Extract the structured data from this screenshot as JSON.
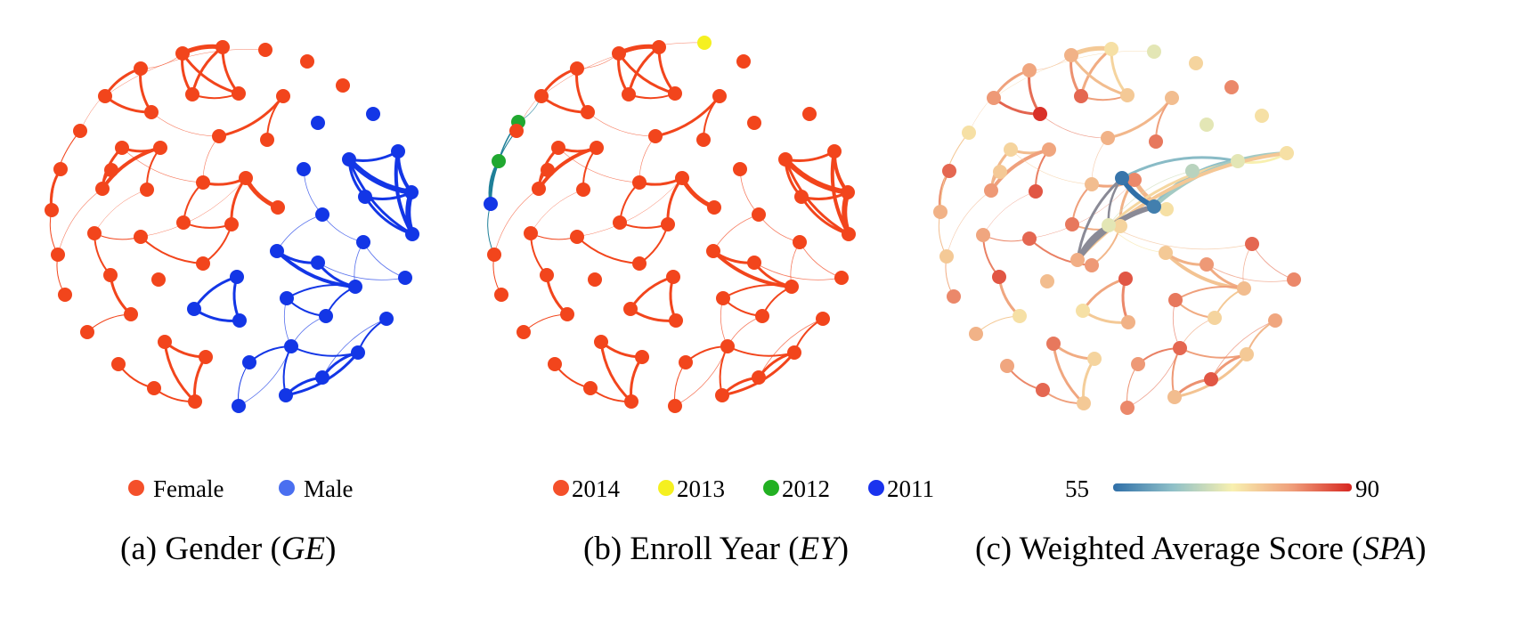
{
  "panels": [
    {
      "caption": "(a) Gender (",
      "caption_var": "GE",
      "caption_end": ")",
      "legend": [
        {
          "label": "Female",
          "color": "#f4502a"
        },
        {
          "label": "Male",
          "color": "#4a6ff0"
        }
      ]
    },
    {
      "caption": "(b) Enroll Year (",
      "caption_var": "EY",
      "caption_end": ")",
      "legend": [
        {
          "label": "2014",
          "color": "#f4502a"
        },
        {
          "label": "2013",
          "color": "#f5f020"
        },
        {
          "label": "2012",
          "color": "#22b022"
        },
        {
          "label": "2011",
          "color": "#1a33ee"
        }
      ]
    },
    {
      "caption": "(c) Weighted Average Score (",
      "caption_var": "SPA",
      "caption_end": ")",
      "colorbar": {
        "min_label": "55",
        "max_label": "90",
        "min": 55,
        "max": 90,
        "colors": [
          "#2f6fa8",
          "#8fc0c8",
          "#f8f0b0",
          "#ef9e7a",
          "#d72620"
        ]
      }
    }
  ],
  "colors": {
    "female": "#f2451c",
    "male": "#1336e6",
    "y2014": "#f2451c",
    "y2013": "#f5f020",
    "y2012": "#20a830",
    "y2011": "#1336e6"
  }
}
